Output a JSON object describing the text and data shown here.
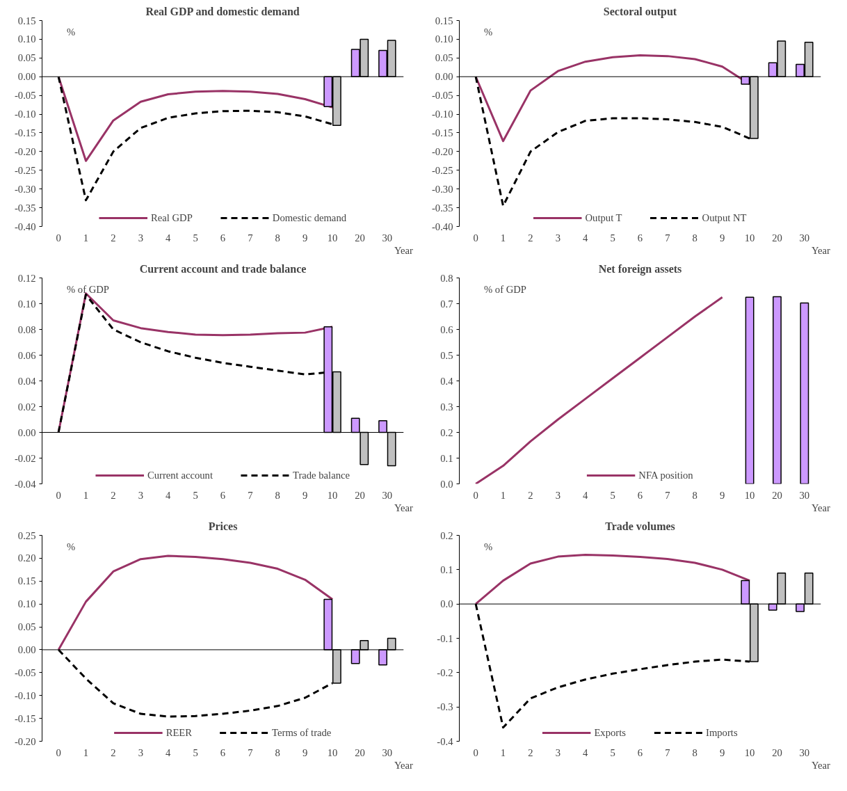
{
  "chart_data": [
    {
      "type": "line",
      "title": "Real GDP and domestic demand",
      "ylabel": "%",
      "xlabel": "Year",
      "categories": [
        "0",
        "1",
        "2",
        "3",
        "4",
        "5",
        "6",
        "7",
        "8",
        "9",
        "10",
        "20",
        "30"
      ],
      "ylim": [
        -0.4,
        0.15
      ],
      "yticks": [
        {
          "value": -0.4,
          "label": "-0.40"
        },
        {
          "value": -0.35,
          "label": "-0.35"
        },
        {
          "value": -0.3,
          "label": "-0.30"
        },
        {
          "value": -0.25,
          "label": "-0.25"
        },
        {
          "value": -0.2,
          "label": "-0.20"
        },
        {
          "value": -0.15,
          "label": "-0.15"
        },
        {
          "value": -0.1,
          "label": "-0.10"
        },
        {
          "value": -0.05,
          "label": "-0.05"
        },
        {
          "value": 0,
          "label": "0.00"
        },
        {
          "value": 0.05,
          "label": "0.05"
        },
        {
          "value": 0.1,
          "label": "0.10"
        },
        {
          "value": 0.15,
          "label": "0.15"
        }
      ],
      "legend": "bottom",
      "ref_lines": [
        {
          "axis": "y",
          "value": 0
        }
      ],
      "series": [
        {
          "name": "Real GDP",
          "line_style": "solid",
          "color": "#993366",
          "values": [
            0,
            -0.225,
            -0.117,
            -0.067,
            -0.047,
            -0.04,
            -0.038,
            -0.04,
            -0.046,
            -0.06,
            -0.082,
            null,
            null
          ]
        },
        {
          "name": "Domestic demand",
          "line_style": "dashed",
          "color": "#000000",
          "values": [
            0,
            -0.33,
            -0.2,
            -0.137,
            -0.11,
            -0.098,
            -0.092,
            -0.091,
            -0.095,
            -0.106,
            -0.127,
            null,
            null
          ]
        },
        {
          "type": "bar",
          "color": "#cc99ff",
          "values": [
            null,
            null,
            null,
            null,
            null,
            null,
            null,
            null,
            null,
            null,
            -0.08,
            0.073,
            0.07
          ]
        },
        {
          "type": "bar",
          "color": "#c0c0c0",
          "values": [
            null,
            null,
            null,
            null,
            null,
            null,
            null,
            null,
            null,
            null,
            -0.13,
            0.1,
            0.097
          ]
        }
      ]
    },
    {
      "type": "line",
      "title": "Sectoral output",
      "ylabel": "%",
      "xlabel": "Year",
      "categories": [
        "0",
        "1",
        "2",
        "3",
        "4",
        "5",
        "6",
        "7",
        "8",
        "9",
        "10",
        "20",
        "30"
      ],
      "ylim": [
        -0.4,
        0.15
      ],
      "yticks": [
        {
          "value": -0.4,
          "label": "-0.40"
        },
        {
          "value": -0.35,
          "label": "-0.35"
        },
        {
          "value": -0.3,
          "label": "-0.30"
        },
        {
          "value": -0.25,
          "label": "-0.25"
        },
        {
          "value": -0.2,
          "label": "-0.20"
        },
        {
          "value": -0.15,
          "label": "-0.15"
        },
        {
          "value": -0.1,
          "label": "-0.10"
        },
        {
          "value": -0.05,
          "label": "-0.05"
        },
        {
          "value": 0,
          "label": "0.00"
        },
        {
          "value": 0.05,
          "label": "0.05"
        },
        {
          "value": 0.1,
          "label": "0.10"
        },
        {
          "value": 0.15,
          "label": "0.15"
        }
      ],
      "legend": "bottom",
      "ref_lines": [
        {
          "axis": "y",
          "value": 0
        }
      ],
      "series": [
        {
          "name": "Output T",
          "line_style": "solid",
          "color": "#993366",
          "values": [
            0,
            -0.172,
            -0.037,
            0.015,
            0.04,
            0.052,
            0.057,
            0.055,
            0.047,
            0.027,
            -0.02,
            null,
            null
          ]
        },
        {
          "name": "Output NT",
          "line_style": "dashed",
          "color": "#000000",
          "values": [
            0,
            -0.345,
            -0.2,
            -0.148,
            -0.118,
            -0.111,
            -0.111,
            -0.114,
            -0.121,
            -0.134,
            -0.165,
            null,
            null
          ]
        },
        {
          "type": "bar",
          "color": "#cc99ff",
          "values": [
            null,
            null,
            null,
            null,
            null,
            null,
            null,
            null,
            null,
            null,
            -0.02,
            0.037,
            0.033
          ]
        },
        {
          "type": "bar",
          "color": "#c0c0c0",
          "values": [
            null,
            null,
            null,
            null,
            null,
            null,
            null,
            null,
            null,
            null,
            -0.165,
            0.095,
            0.092
          ]
        }
      ]
    },
    {
      "type": "line",
      "title": "Current account and trade balance",
      "ylabel": "% of GDP",
      "xlabel": "Year",
      "categories": [
        "0",
        "1",
        "2",
        "3",
        "4",
        "5",
        "6",
        "7",
        "8",
        "9",
        "10",
        "20",
        "30"
      ],
      "ylim": [
        -0.04,
        0.12
      ],
      "yticks": [
        {
          "value": -0.04,
          "label": "-0.04"
        },
        {
          "value": -0.02,
          "label": "-0.02"
        },
        {
          "value": 0,
          "label": "0.00"
        },
        {
          "value": 0.02,
          "label": "0.02"
        },
        {
          "value": 0.04,
          "label": "0.04"
        },
        {
          "value": 0.06,
          "label": "0.06"
        },
        {
          "value": 0.08,
          "label": "0.08"
        },
        {
          "value": 0.1,
          "label": "0.10"
        },
        {
          "value": 0.12,
          "label": "0.12"
        }
      ],
      "legend": "bottom",
      "ref_lines": [
        {
          "axis": "y",
          "value": 0
        }
      ],
      "series": [
        {
          "name": "Current account",
          "line_style": "solid",
          "color": "#993366",
          "values": [
            0,
            0.108,
            0.087,
            0.081,
            0.078,
            0.076,
            0.0755,
            0.076,
            0.077,
            0.0775,
            0.082,
            null,
            null
          ]
        },
        {
          "name": "Trade balance",
          "line_style": "dashed",
          "color": "#000000",
          "values": [
            0,
            0.107,
            0.08,
            0.07,
            0.063,
            0.058,
            0.054,
            0.051,
            0.048,
            0.045,
            0.047,
            null,
            null
          ]
        },
        {
          "type": "bar",
          "color": "#cc99ff",
          "values": [
            null,
            null,
            null,
            null,
            null,
            null,
            null,
            null,
            null,
            null,
            0.082,
            0.011,
            0.009
          ]
        },
        {
          "type": "bar",
          "color": "#c0c0c0",
          "values": [
            null,
            null,
            null,
            null,
            null,
            null,
            null,
            null,
            null,
            null,
            0.047,
            -0.025,
            -0.026
          ]
        }
      ]
    },
    {
      "type": "line",
      "title": "Net foreign assets",
      "ylabel": "% of GDP",
      "xlabel": "Year",
      "categories": [
        "0",
        "1",
        "2",
        "3",
        "4",
        "5",
        "6",
        "7",
        "8",
        "9",
        "10",
        "20",
        "30"
      ],
      "ylim": [
        0,
        0.8
      ],
      "yticks": [
        {
          "value": 0,
          "label": "0.0"
        },
        {
          "value": 0.1,
          "label": "0.1"
        },
        {
          "value": 0.2,
          "label": "0.2"
        },
        {
          "value": 0.3,
          "label": "0.3"
        },
        {
          "value": 0.4,
          "label": "0.4"
        },
        {
          "value": 0.5,
          "label": "0.5"
        },
        {
          "value": 0.6,
          "label": "0.6"
        },
        {
          "value": 0.7,
          "label": "0.7"
        },
        {
          "value": 0.8,
          "label": "0.8"
        }
      ],
      "legend": "bottom",
      "series": [
        {
          "name": "NFA position",
          "line_style": "solid",
          "color": "#993366",
          "values": [
            0,
            0.07,
            0.165,
            0.25,
            0.33,
            0.41,
            0.49,
            0.57,
            0.65,
            0.725,
            null,
            null,
            null
          ]
        },
        {
          "type": "bar",
          "color": "#cc99ff",
          "values": [
            null,
            null,
            null,
            null,
            null,
            null,
            null,
            null,
            null,
            null,
            0.725,
            0.727,
            0.703
          ]
        }
      ]
    },
    {
      "type": "line",
      "title": "Prices",
      "ylabel": "%",
      "xlabel": "Year",
      "categories": [
        "0",
        "1",
        "2",
        "3",
        "4",
        "5",
        "6",
        "7",
        "8",
        "9",
        "10",
        "20",
        "30"
      ],
      "ylim": [
        -0.2,
        0.25
      ],
      "yticks": [
        {
          "value": -0.2,
          "label": "-0.20"
        },
        {
          "value": -0.15,
          "label": "-0.15"
        },
        {
          "value": -0.1,
          "label": "-0.10"
        },
        {
          "value": -0.05,
          "label": "-0.05"
        },
        {
          "value": 0,
          "label": "0.00"
        },
        {
          "value": 0.05,
          "label": "0.05"
        },
        {
          "value": 0.1,
          "label": "0.10"
        },
        {
          "value": 0.15,
          "label": "0.15"
        },
        {
          "value": 0.2,
          "label": "0.20"
        },
        {
          "value": 0.25,
          "label": "0.25"
        }
      ],
      "legend": "bottom",
      "ref_lines": [
        {
          "axis": "y",
          "value": 0
        }
      ],
      "series": [
        {
          "name": "REER",
          "line_style": "solid",
          "color": "#993366",
          "values": [
            0,
            0.105,
            0.171,
            0.198,
            0.205,
            0.203,
            0.198,
            0.19,
            0.177,
            0.153,
            0.11,
            null,
            null
          ]
        },
        {
          "name": "Terms of trade",
          "line_style": "dashed",
          "color": "#000000",
          "values": [
            0,
            -0.063,
            -0.117,
            -0.14,
            -0.146,
            -0.145,
            -0.14,
            -0.133,
            -0.123,
            -0.105,
            -0.073,
            null,
            null
          ]
        },
        {
          "type": "bar",
          "color": "#cc99ff",
          "values": [
            null,
            null,
            null,
            null,
            null,
            null,
            null,
            null,
            null,
            null,
            0.11,
            -0.03,
            -0.033
          ]
        },
        {
          "type": "bar",
          "color": "#c0c0c0",
          "values": [
            null,
            null,
            null,
            null,
            null,
            null,
            null,
            null,
            null,
            null,
            -0.073,
            0.02,
            0.025
          ]
        }
      ]
    },
    {
      "type": "line",
      "title": "Trade volumes",
      "ylabel": "%",
      "xlabel": "Year",
      "categories": [
        "0",
        "1",
        "2",
        "3",
        "4",
        "5",
        "6",
        "7",
        "8",
        "9",
        "10",
        "20",
        "30"
      ],
      "ylim": [
        -0.4,
        0.2
      ],
      "yticks": [
        {
          "value": -0.4,
          "label": "-0.4"
        },
        {
          "value": -0.3,
          "label": "-0.3"
        },
        {
          "value": -0.2,
          "label": "-0.2"
        },
        {
          "value": -0.1,
          "label": "-0.1"
        },
        {
          "value": 0,
          "label": "0.0"
        },
        {
          "value": 0.1,
          "label": "0.1"
        },
        {
          "value": 0.2,
          "label": "0.2"
        }
      ],
      "legend": "bottom",
      "ref_lines": [
        {
          "axis": "y",
          "value": 0
        }
      ],
      "series": [
        {
          "name": "Exports",
          "line_style": "solid",
          "color": "#993366",
          "values": [
            0,
            0.068,
            0.118,
            0.138,
            0.143,
            0.141,
            0.137,
            0.131,
            0.12,
            0.1,
            0.068,
            null,
            null
          ]
        },
        {
          "name": "Imports",
          "line_style": "dashed",
          "color": "#000000",
          "values": [
            0,
            -0.36,
            -0.275,
            -0.243,
            -0.22,
            -0.203,
            -0.19,
            -0.178,
            -0.168,
            -0.162,
            -0.168,
            null,
            null
          ]
        },
        {
          "type": "bar",
          "color": "#cc99ff",
          "values": [
            null,
            null,
            null,
            null,
            null,
            null,
            null,
            null,
            null,
            null,
            0.068,
            -0.018,
            -0.022
          ]
        },
        {
          "type": "bar",
          "color": "#c0c0c0",
          "values": [
            null,
            null,
            null,
            null,
            null,
            null,
            null,
            null,
            null,
            null,
            -0.168,
            0.09,
            0.09
          ]
        }
      ]
    }
  ]
}
